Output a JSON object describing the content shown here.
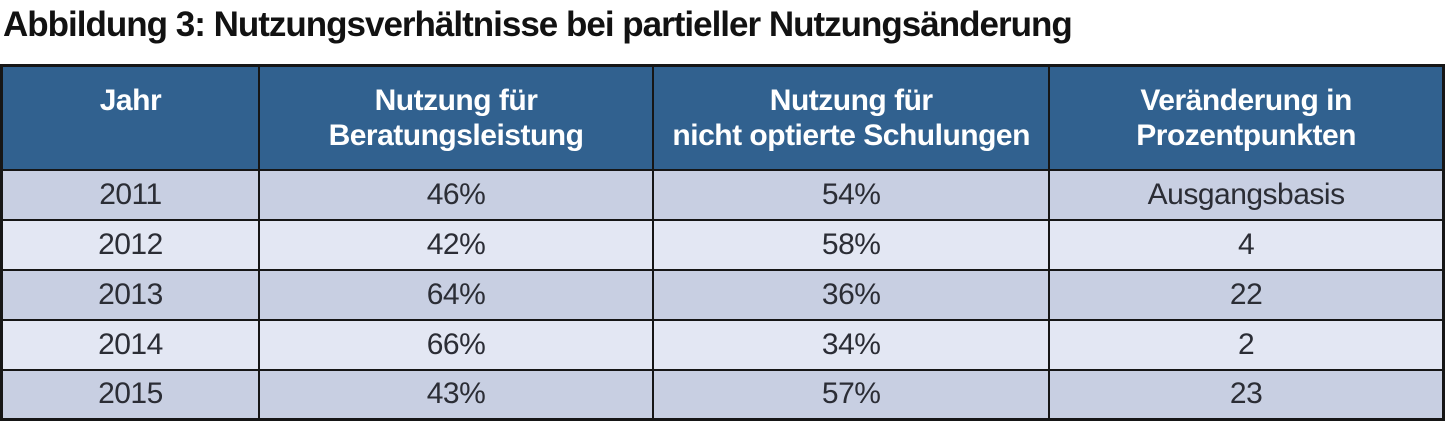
{
  "chart_data": {
    "type": "table",
    "title": "Abbildung 3: Nutzungsverhältnisse bei partieller Nutzungsänderung",
    "columns": [
      "Jahr",
      "Nutzung für\nBeratungsleistung",
      "Nutzung für\nnicht optierte Schulungen",
      "Veränderung in\nProzentpunkten"
    ],
    "rows": [
      [
        "2011",
        "46%",
        "54%",
        "Ausgangsbasis"
      ],
      [
        "2012",
        "42%",
        "58%",
        "4"
      ],
      [
        "2013",
        "64%",
        "36%",
        "22"
      ],
      [
        "2014",
        "66%",
        "34%",
        "2"
      ],
      [
        "2015",
        "43%",
        "57%",
        "23"
      ]
    ],
    "notes": {
      "row_2011_change_label": "Ausgangsbasis",
      "units_columns_2_3": "percent",
      "units_column_4": "percentage points"
    }
  },
  "colors": {
    "header_bg": "#31618F",
    "header_text": "#FFFFFF",
    "row_odd_bg": "#C8CFE2",
    "row_even_bg": "#E3E7F3",
    "border": "#161616",
    "cell_text": "#2B2D35",
    "title_text": "#121212"
  }
}
